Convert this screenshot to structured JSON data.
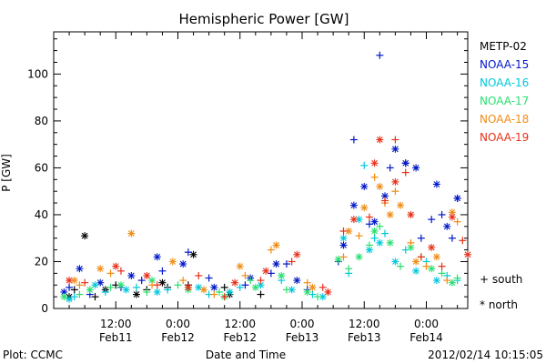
{
  "chart_data": {
    "type": "scatter",
    "title": "Hemispheric Power [GW]",
    "xlabel": "Date and Time",
    "ylabel": "P [GW]",
    "footer_left": "Plot: CCMC",
    "footer_right": "2012/02/14 10:15:05",
    "ylim": [
      0,
      118
    ],
    "yticks": [
      0,
      20,
      40,
      60,
      80,
      100
    ],
    "xlim_hours": [
      0,
      80
    ],
    "xticks": [
      {
        "hour": 12,
        "line1": "12:00",
        "line2": "Feb11"
      },
      {
        "hour": 24,
        "line1": "0:00",
        "line2": "Feb12"
      },
      {
        "hour": 36,
        "line1": "12:00",
        "line2": "Feb12"
      },
      {
        "hour": 48,
        "line1": "0:00",
        "line2": "Feb13"
      },
      {
        "hour": 60,
        "line1": "12:00",
        "line2": "Feb13"
      },
      {
        "hour": 72,
        "line1": "0:00",
        "line2": "Feb14"
      }
    ],
    "marker_legend": [
      {
        "symbol": "+",
        "label": "south"
      },
      {
        "symbol": "*",
        "label": "north"
      }
    ],
    "series": [
      {
        "name": "METP-02",
        "color": "#000000",
        "south": [
          [
            4,
            8
          ],
          [
            8,
            5
          ],
          [
            12,
            10
          ],
          [
            18,
            8
          ],
          [
            22,
            9
          ],
          [
            26,
            10
          ],
          [
            33,
            9
          ],
          [
            40,
            6
          ]
        ],
        "north": [
          [
            3,
            5
          ],
          [
            6,
            31
          ],
          [
            10,
            8
          ],
          [
            16,
            6
          ],
          [
            21,
            11
          ],
          [
            27,
            23
          ],
          [
            34,
            6
          ]
        ]
      },
      {
        "name": "NOAA-15",
        "color": "#0018c8",
        "south": [
          [
            3,
            9
          ],
          [
            7,
            6
          ],
          [
            13,
            9
          ],
          [
            17,
            12
          ],
          [
            21,
            16
          ],
          [
            26,
            24
          ],
          [
            30,
            13
          ],
          [
            37,
            10
          ],
          [
            42,
            15
          ],
          [
            45,
            19
          ],
          [
            49,
            8
          ],
          [
            55,
            20
          ],
          [
            58,
            72
          ],
          [
            61,
            36
          ],
          [
            63,
            108
          ],
          [
            65,
            60
          ],
          [
            68,
            62
          ],
          [
            71,
            30
          ],
          [
            73,
            38
          ],
          [
            75,
            40
          ],
          [
            77,
            30
          ],
          [
            78,
            47
          ]
        ],
        "north": [
          [
            2,
            7
          ],
          [
            5,
            17
          ],
          [
            9,
            11
          ],
          [
            15,
            14
          ],
          [
            20,
            22
          ],
          [
            25,
            19
          ],
          [
            31,
            9
          ],
          [
            38,
            13
          ],
          [
            43,
            19
          ],
          [
            47,
            12
          ],
          [
            56,
            27
          ],
          [
            58,
            44
          ],
          [
            60,
            52
          ],
          [
            62,
            37
          ],
          [
            64,
            48
          ],
          [
            66,
            68
          ],
          [
            68,
            62
          ],
          [
            70,
            60
          ],
          [
            74,
            53
          ],
          [
            76,
            35
          ],
          [
            78,
            47
          ]
        ]
      },
      {
        "name": "NOAA-16",
        "color": "#00c8dc",
        "south": [
          [
            4,
            5
          ],
          [
            10,
            7
          ],
          [
            16,
            9
          ],
          [
            22,
            8
          ],
          [
            30,
            6
          ],
          [
            36,
            9
          ],
          [
            44,
            12
          ],
          [
            50,
            6
          ],
          [
            57,
            15
          ],
          [
            60,
            61
          ],
          [
            62,
            30
          ],
          [
            64,
            32
          ],
          [
            68,
            25
          ],
          [
            72,
            20
          ],
          [
            76,
            14
          ],
          [
            78,
            12
          ]
        ],
        "north": [
          [
            3,
            4
          ],
          [
            8,
            10
          ],
          [
            14,
            8
          ],
          [
            20,
            7
          ],
          [
            28,
            9
          ],
          [
            34,
            7
          ],
          [
            40,
            10
          ],
          [
            46,
            8
          ],
          [
            52,
            5
          ],
          [
            56,
            30
          ],
          [
            59,
            38
          ],
          [
            61,
            25
          ],
          [
            63,
            28
          ],
          [
            66,
            20
          ],
          [
            70,
            16
          ],
          [
            74,
            12
          ]
        ]
      },
      {
        "name": "NOAA-17",
        "color": "#28e070",
        "south": [
          [
            5,
            6
          ],
          [
            11,
            9
          ],
          [
            18,
            7
          ],
          [
            24,
            10
          ],
          [
            32,
            7
          ],
          [
            38,
            12
          ],
          [
            45,
            8
          ],
          [
            51,
            5
          ],
          [
            57,
            17
          ],
          [
            61,
            27
          ],
          [
            63,
            35
          ],
          [
            67,
            18
          ],
          [
            71,
            22
          ],
          [
            75,
            15
          ],
          [
            78,
            13
          ]
        ],
        "north": [
          [
            2,
            5
          ],
          [
            7,
            8
          ],
          [
            13,
            10
          ],
          [
            19,
            12
          ],
          [
            26,
            8
          ],
          [
            33,
            5
          ],
          [
            39,
            9
          ],
          [
            44,
            14
          ],
          [
            49,
            7
          ],
          [
            55,
            21
          ],
          [
            59,
            22
          ],
          [
            62,
            33
          ],
          [
            65,
            28
          ],
          [
            69,
            26
          ],
          [
            73,
            17
          ],
          [
            77,
            11
          ]
        ]
      },
      {
        "name": "NOAA-18",
        "color": "#f08c14",
        "south": [
          [
            5,
            10
          ],
          [
            11,
            15
          ],
          [
            19,
            10
          ],
          [
            25,
            12
          ],
          [
            31,
            6
          ],
          [
            37,
            14
          ],
          [
            42,
            25
          ],
          [
            49,
            11
          ],
          [
            56,
            22
          ],
          [
            59,
            31
          ],
          [
            62,
            56
          ],
          [
            64,
            45
          ],
          [
            66,
            50
          ],
          [
            69,
            28
          ],
          [
            72,
            18
          ],
          [
            76,
            12
          ],
          [
            78,
            37
          ]
        ],
        "north": [
          [
            4,
            12
          ],
          [
            9,
            17
          ],
          [
            15,
            32
          ],
          [
            23,
            20
          ],
          [
            29,
            8
          ],
          [
            36,
            18
          ],
          [
            43,
            27
          ],
          [
            50,
            9
          ],
          [
            57,
            33
          ],
          [
            60,
            43
          ],
          [
            63,
            52
          ],
          [
            65,
            40
          ],
          [
            67,
            44
          ],
          [
            70,
            20
          ],
          [
            74,
            22
          ],
          [
            77,
            41
          ]
        ]
      },
      {
        "name": "NOAA-19",
        "color": "#e83018",
        "south": [
          [
            6,
            11
          ],
          [
            13,
            16
          ],
          [
            20,
            10
          ],
          [
            28,
            14
          ],
          [
            33,
            5
          ],
          [
            40,
            12
          ],
          [
            46,
            20
          ],
          [
            52,
            9
          ],
          [
            56,
            33
          ],
          [
            61,
            39
          ],
          [
            64,
            46
          ],
          [
            66,
            72
          ],
          [
            68,
            58
          ],
          [
            71,
            22
          ],
          [
            75,
            18
          ],
          [
            79,
            29
          ]
        ],
        "north": [
          [
            3,
            12
          ],
          [
            12,
            18
          ],
          [
            18,
            14
          ],
          [
            26,
            9
          ],
          [
            35,
            11
          ],
          [
            41,
            16
          ],
          [
            47,
            23
          ],
          [
            53,
            7
          ],
          [
            58,
            38
          ],
          [
            62,
            62
          ],
          [
            63,
            72
          ],
          [
            66,
            54
          ],
          [
            69,
            40
          ],
          [
            73,
            26
          ],
          [
            77,
            39
          ],
          [
            80,
            23
          ]
        ]
      }
    ]
  }
}
